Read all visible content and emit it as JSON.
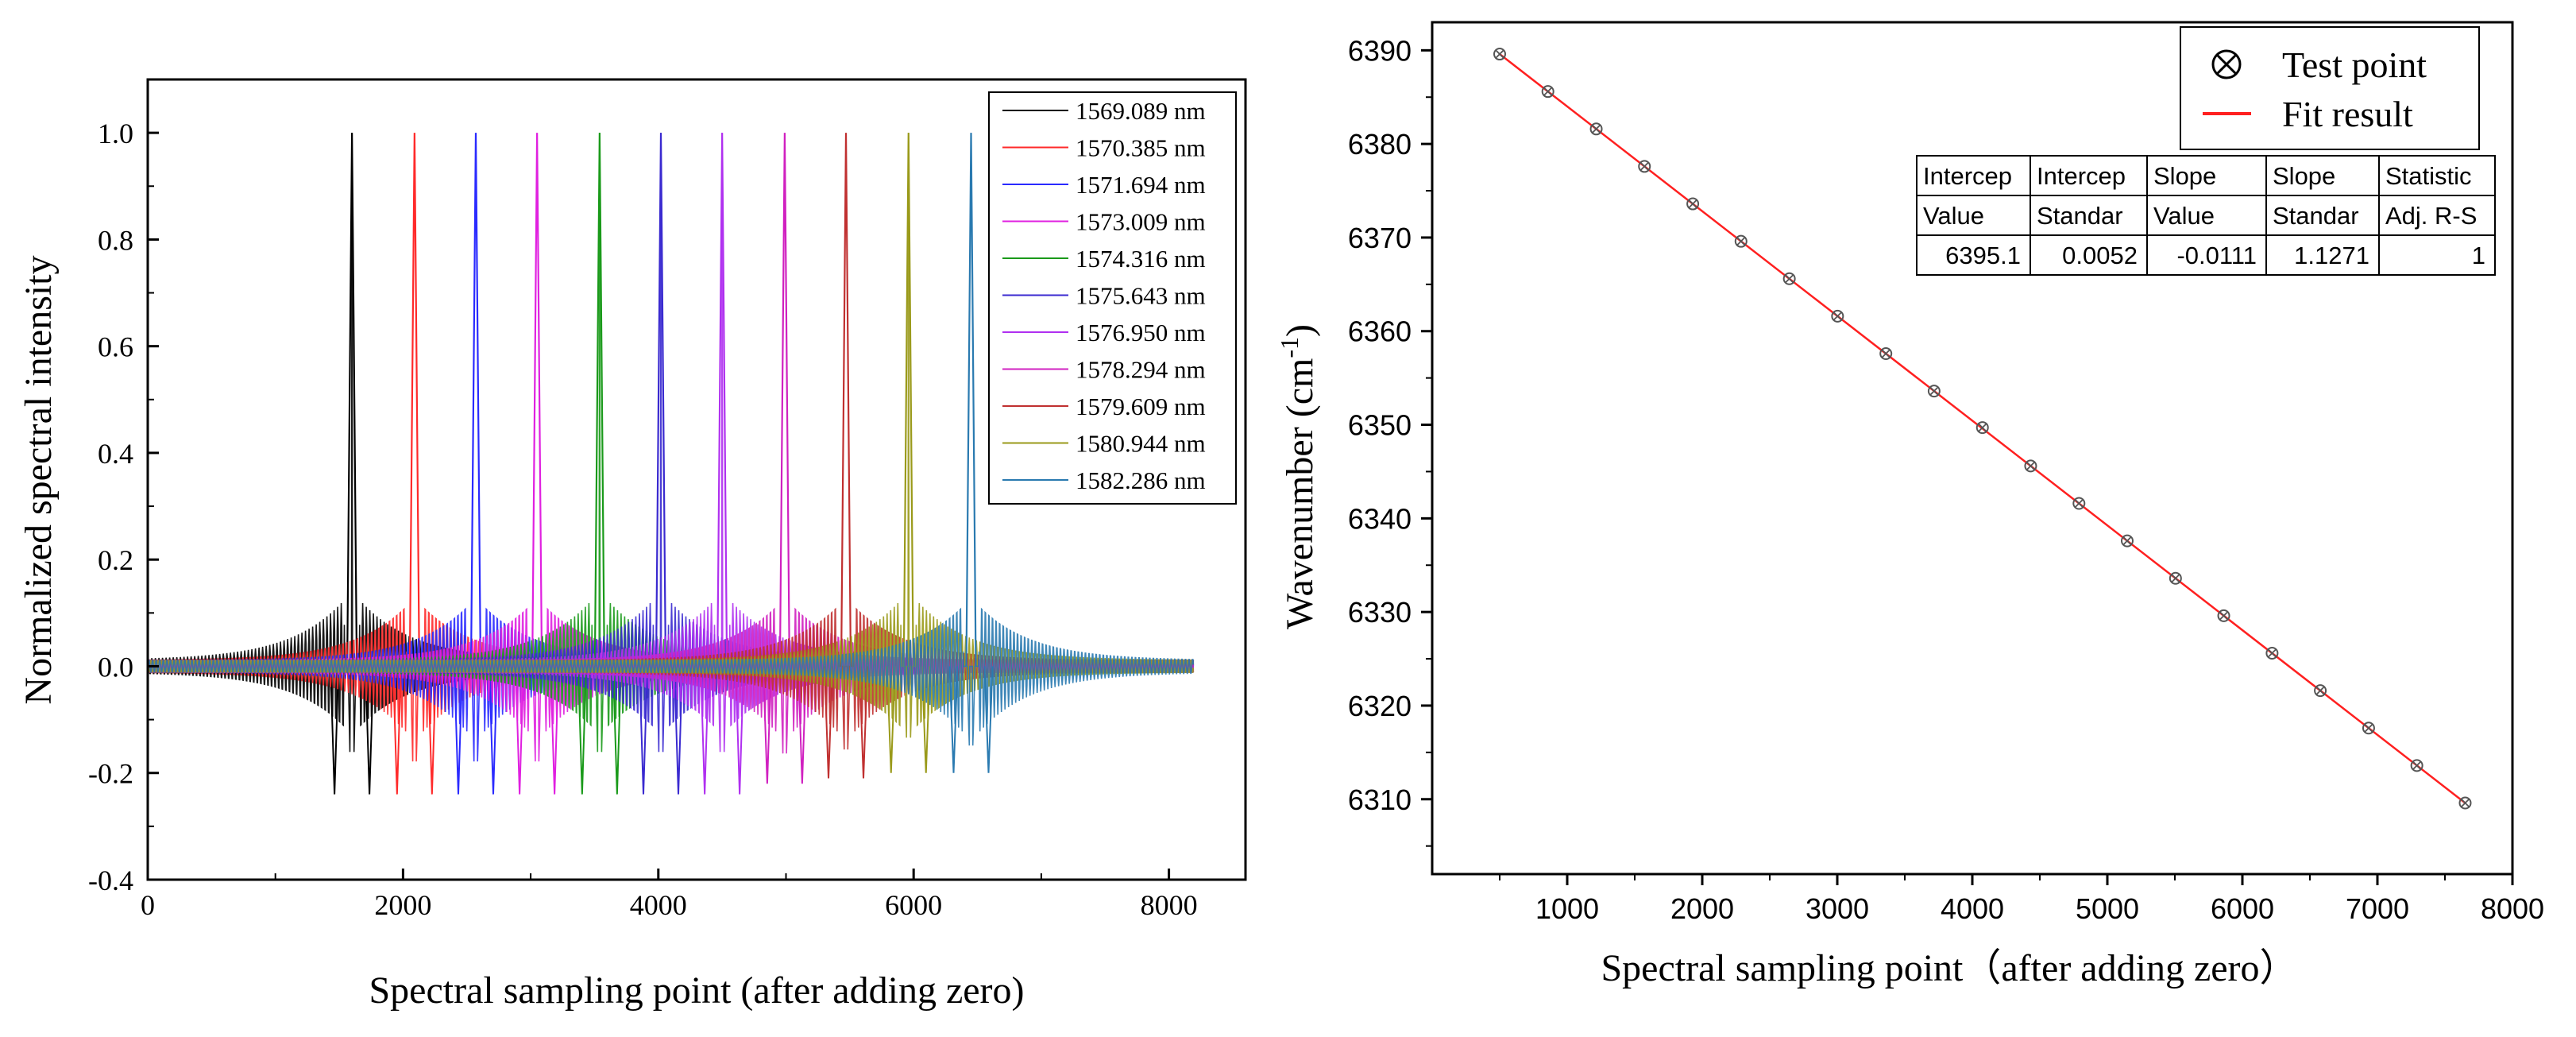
{
  "chart_data": [
    {
      "type": "line",
      "title": "",
      "xlabel": "Spectral sampling point (after adding zero)",
      "ylabel": "Normalized spectral intensity",
      "xlim": [
        0,
        8600
      ],
      "ylim": [
        -0.4,
        1.1
      ],
      "xticks": [
        0,
        2000,
        4000,
        6000,
        8000
      ],
      "xtick_labels": [
        "0",
        "2000",
        "4000",
        "6000",
        "8000"
      ],
      "yticks": [
        -0.4,
        -0.2,
        0.0,
        0.2,
        0.4,
        0.6,
        0.8,
        1.0
      ],
      "ytick_labels": [
        "-0.4",
        "-0.2",
        "0.0",
        "0.2",
        "0.4",
        "0.6",
        "0.8",
        "1.0"
      ],
      "grid": false,
      "legend_position": "top-right",
      "signal_range": [
        0,
        8192
      ],
      "series": [
        {
          "name": "1569.089 nm",
          "color": "#000000",
          "peak_x": 1600,
          "peak_value": 1.0,
          "min_value": -0.24
        },
        {
          "name": "1570.385 nm",
          "color": "#ff2a2a",
          "peak_x": 2090,
          "peak_value": 1.0,
          "min_value": -0.24
        },
        {
          "name": "1571.694 nm",
          "color": "#2a2aff",
          "peak_x": 2570,
          "peak_value": 1.0,
          "min_value": -0.24
        },
        {
          "name": "1573.009 nm",
          "color": "#e020e0",
          "peak_x": 3050,
          "peak_value": 1.0,
          "min_value": -0.24
        },
        {
          "name": "1574.316 nm",
          "color": "#1a9a1a",
          "peak_x": 3540,
          "peak_value": 1.0,
          "min_value": -0.24
        },
        {
          "name": "1575.643 nm",
          "color": "#3a2ad0",
          "peak_x": 4020,
          "peak_value": 1.0,
          "min_value": -0.24
        },
        {
          "name": "1576.950 nm",
          "color": "#b030f0",
          "peak_x": 4500,
          "peak_value": 1.0,
          "min_value": -0.24
        },
        {
          "name": "1578.294 nm",
          "color": "#d020c0",
          "peak_x": 4990,
          "peak_value": 1.0,
          "min_value": -0.22
        },
        {
          "name": "1579.609 nm",
          "color": "#c03030",
          "peak_x": 5470,
          "peak_value": 1.0,
          "min_value": -0.21
        },
        {
          "name": "1580.944 nm",
          "color": "#9a9a1a",
          "peak_x": 5960,
          "peak_value": 1.0,
          "min_value": -0.2
        },
        {
          "name": "1582.286 nm",
          "color": "#2a7ab0",
          "peak_x": 6450,
          "peak_value": 1.0,
          "min_value": -0.2
        }
      ]
    },
    {
      "type": "scatter",
      "title": "",
      "xlabel": "Spectral sampling point（after adding zero）",
      "ylabel": "Wavenumber (cm",
      "ylabel_sup": "-1",
      "ylabel_tail": ")",
      "xlim": [
        0,
        8000
      ],
      "ylim": [
        6302,
        6393
      ],
      "xticks": [
        1000,
        2000,
        3000,
        4000,
        5000,
        6000,
        7000,
        8000
      ],
      "xtick_labels": [
        "1000",
        "2000",
        "3000",
        "4000",
        "5000",
        "6000",
        "7000",
        "8000"
      ],
      "yticks": [
        6310,
        6320,
        6330,
        6340,
        6350,
        6360,
        6370,
        6380,
        6390
      ],
      "ytick_labels": [
        "6310",
        "6320",
        "6330",
        "6340",
        "6350",
        "6360",
        "6370",
        "6380",
        "6390"
      ],
      "grid": false,
      "legend_position": "top-right",
      "legend": [
        {
          "label": "Test point",
          "marker": "circle-x"
        },
        {
          "label": "Fit result",
          "marker": "line",
          "color": "#ff2020"
        }
      ],
      "points": {
        "x": [
          500,
          857,
          1215,
          1572,
          1930,
          2287,
          2645,
          3002,
          3360,
          3717,
          4075,
          4432,
          4790,
          5147,
          5505,
          5862,
          6220,
          6577,
          6935,
          7292,
          7650
        ],
        "y": [
          6389.6,
          6385.6,
          6381.6,
          6377.6,
          6373.6,
          6369.6,
          6365.6,
          6361.6,
          6357.6,
          6353.6,
          6349.7,
          6345.6,
          6341.6,
          6337.6,
          6333.6,
          6329.6,
          6325.6,
          6321.6,
          6317.6,
          6313.6,
          6309.6
        ]
      },
      "fit": {
        "x": [
          500,
          7650
        ],
        "y": [
          6389.6,
          6309.6
        ],
        "color": "#ff2020"
      },
      "fit_table": {
        "rows": [
          [
            "Intercep",
            "Intercep",
            "Slope",
            "Slope",
            "Statistic"
          ],
          [
            "Value",
            "Standar",
            "Value",
            "Standar",
            "Adj. R-S"
          ],
          [
            "6395.1",
            "0.0052",
            "-0.0111",
            "1.1271",
            "1"
          ]
        ]
      }
    }
  ]
}
